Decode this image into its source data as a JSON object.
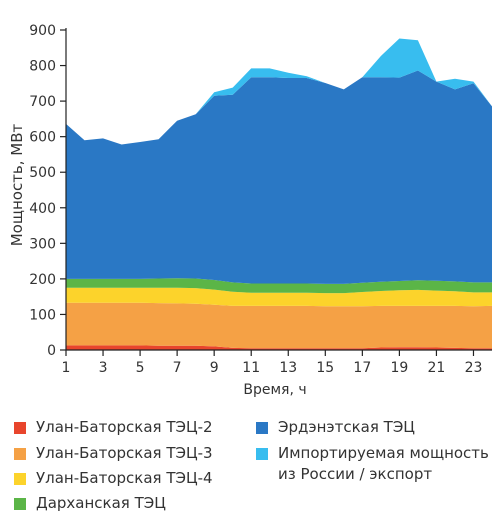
{
  "chart_data": {
    "type": "area",
    "stacked": true,
    "xlabel": "Время, ч",
    "ylabel": "Мощность, МВт",
    "xlim": [
      1,
      24
    ],
    "ylim": [
      0,
      900
    ],
    "x_ticks": [
      1,
      3,
      5,
      7,
      9,
      11,
      13,
      15,
      17,
      19,
      21,
      23
    ],
    "y_ticks": [
      0,
      100,
      200,
      300,
      400,
      500,
      600,
      700,
      800,
      900
    ],
    "grid": false,
    "legend_position": "bottom",
    "x": [
      1,
      2,
      3,
      4,
      5,
      6,
      7,
      8,
      9,
      10,
      11,
      12,
      13,
      14,
      15,
      16,
      17,
      18,
      19,
      20,
      21,
      22,
      23,
      24
    ],
    "series": [
      {
        "name": "Улан-Баторская ТЭЦ-2",
        "color": "#e8452c",
        "values": [
          13,
          13,
          13,
          13,
          13,
          12,
          12,
          12,
          10,
          6,
          5,
          5,
          5,
          5,
          5,
          5,
          5,
          7,
          8,
          8,
          7,
          6,
          5,
          5
        ]
      },
      {
        "name": "Улан-Баторская ТЭЦ-3",
        "color": "#f5a145",
        "values": [
          120,
          120,
          120,
          120,
          120,
          120,
          119,
          118,
          117,
          118,
          119,
          119,
          119,
          119,
          118,
          118,
          118,
          117,
          116,
          116,
          117,
          118,
          118,
          119
        ]
      },
      {
        "name": "Улан-Баторская ТЭЦ-4",
        "color": "#fcd32b",
        "values": [
          42,
          42,
          42,
          42,
          42,
          43,
          44,
          44,
          43,
          40,
          37,
          37,
          37,
          37,
          37,
          37,
          40,
          42,
          44,
          45,
          43,
          41,
          39,
          38
        ]
      },
      {
        "name": "Дарханская ТЭЦ",
        "color": "#5bb547",
        "values": [
          25,
          25,
          25,
          25,
          25,
          26,
          27,
          27,
          27,
          26,
          26,
          26,
          26,
          26,
          26,
          26,
          26,
          26,
          26,
          27,
          28,
          28,
          28,
          28
        ]
      },
      {
        "name": "Эрдэнэтская ТЭЦ",
        "color": "#2a78c5",
        "values": [
          436,
          390,
          395,
          378,
          385,
          392,
          443,
          462,
          518,
          528,
          580,
          580,
          578,
          578,
          565,
          547,
          578,
          575,
          572,
          590,
          560,
          540,
          560,
          495
        ]
      },
      {
        "name": "Импортируемая мощность\nиз России / экспорт",
        "color": "#38bdef",
        "values": [
          0,
          0,
          0,
          0,
          0,
          0,
          0,
          0,
          10,
          20,
          25,
          25,
          15,
          5,
          0,
          0,
          0,
          60,
          110,
          85,
          0,
          30,
          5,
          0
        ]
      }
    ]
  }
}
